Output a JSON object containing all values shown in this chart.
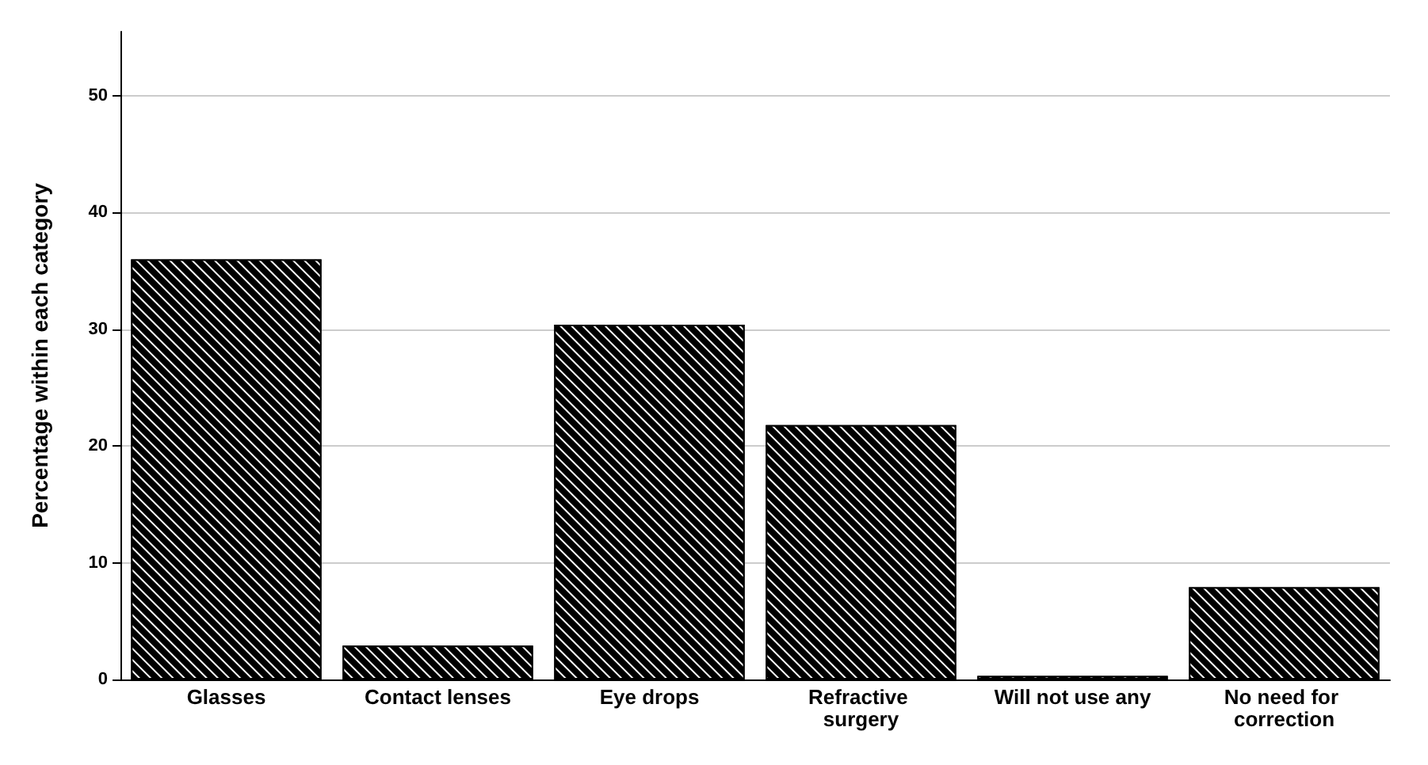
{
  "chart_data": {
    "type": "bar",
    "ylabel": "Percentage within each category",
    "categories": [
      "Glasses",
      "Contact lenses",
      "Eye drops",
      "Refractive surgery",
      "Will not use any",
      "No need for correction"
    ],
    "values": [
      36.0,
      2.9,
      30.4,
      21.8,
      0.3,
      7.9
    ],
    "color": "#000000",
    "ylim": [
      0,
      55.5
    ],
    "yticks": [
      0,
      10,
      20,
      30,
      40,
      50
    ],
    "grid": "y"
  }
}
